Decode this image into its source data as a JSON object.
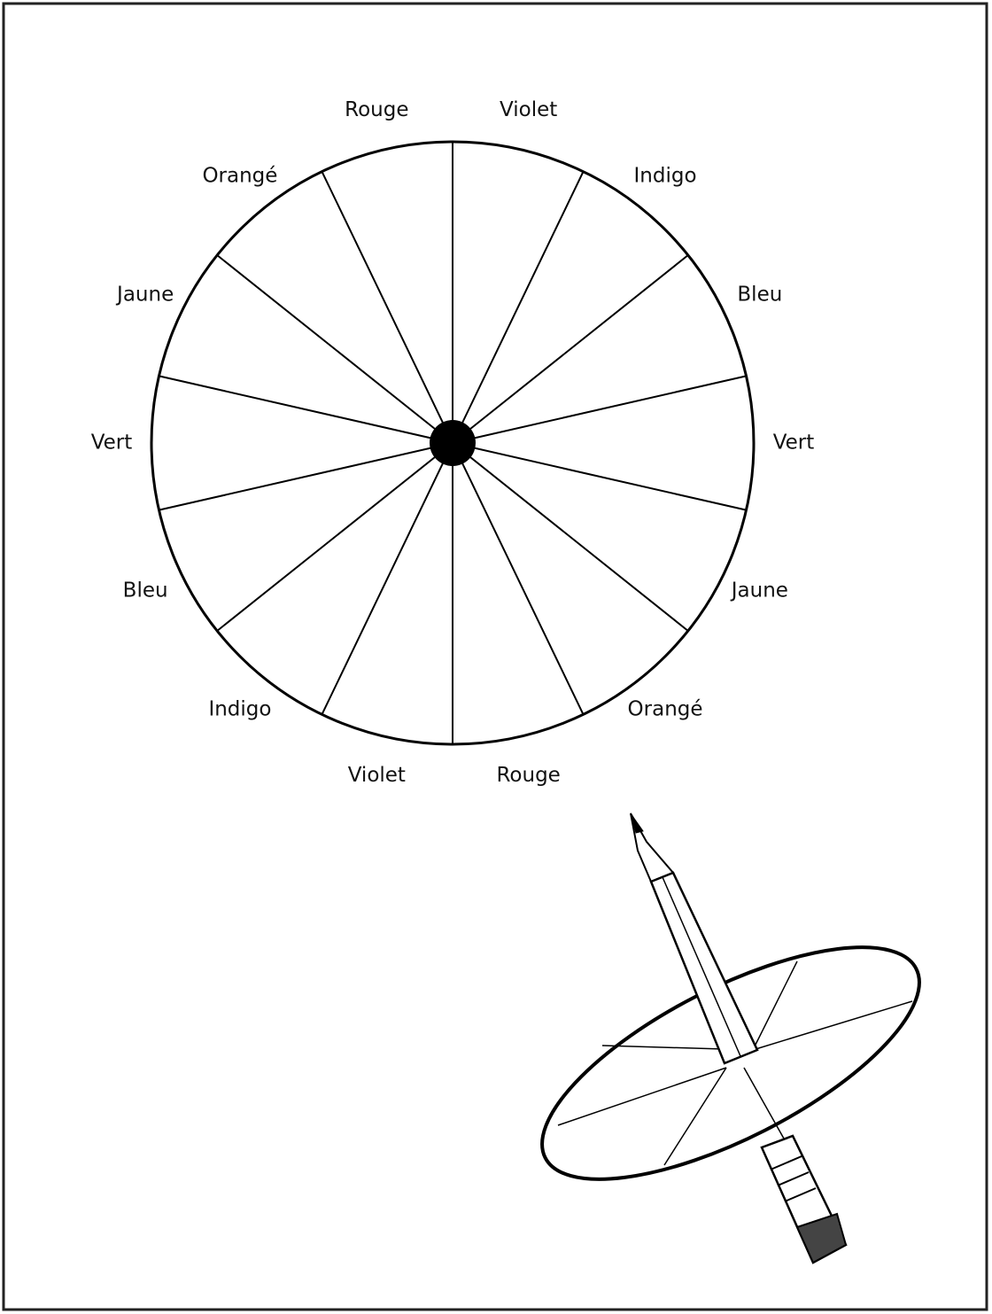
{
  "wheel": {
    "labels": [
      "Violet",
      "Indigo",
      "Bleu",
      "Vert",
      "Jaune",
      "Orangé",
      "Rouge",
      "Violet",
      "Indigo",
      "Bleu",
      "Vert",
      "Jaune",
      "Orangé",
      "Rouge"
    ]
  }
}
